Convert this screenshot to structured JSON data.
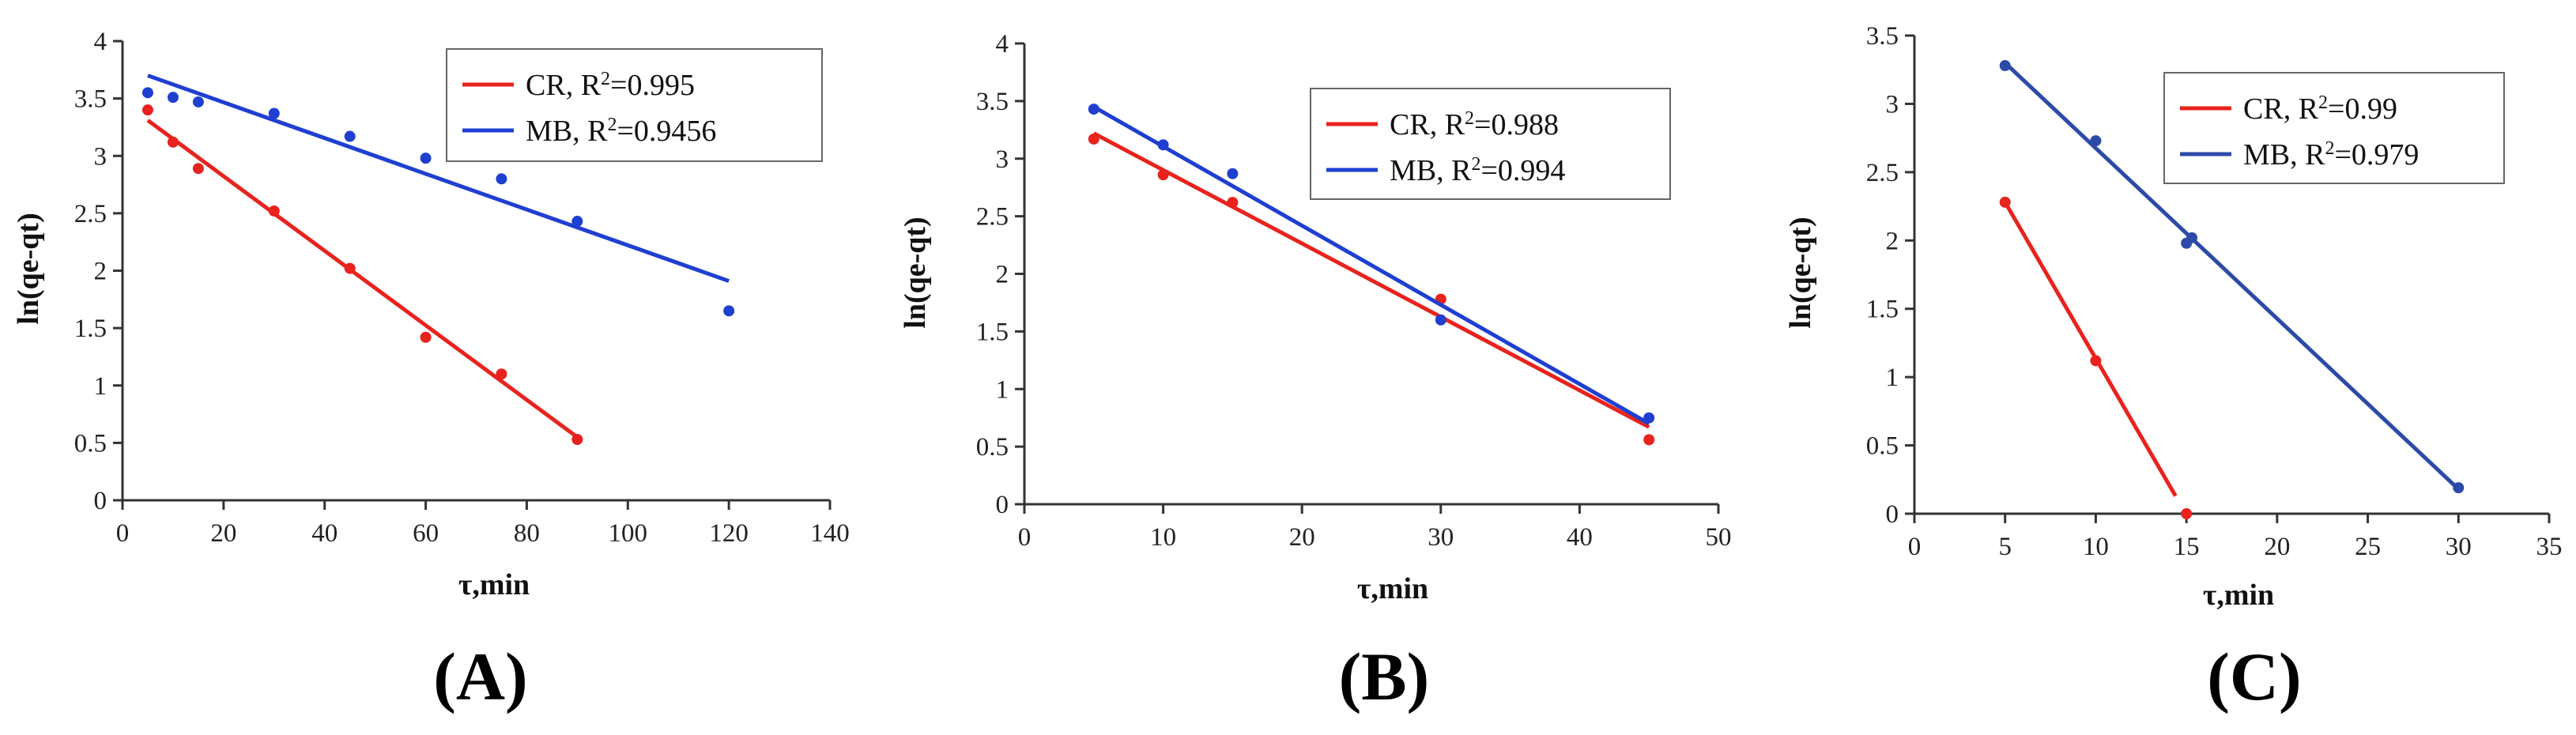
{
  "chart_data": [
    {
      "type": "scatter",
      "panel_label": "(A)",
      "xlabel": "τ,min",
      "ylabel": "ln(qe-qt)",
      "xlim": [
        0,
        140
      ],
      "ylim": [
        0,
        4
      ],
      "xticks": [
        0,
        20,
        40,
        60,
        80,
        100,
        120,
        140
      ],
      "yticks": [
        0,
        0.5,
        1,
        1.5,
        2,
        2.5,
        3,
        3.5,
        4
      ],
      "legend_position": "top-right",
      "grid": false,
      "series": [
        {
          "name": "CR, R",
          "r2": "0.995",
          "color": "#e8231d",
          "points": [
            [
              5,
              3.4
            ],
            [
              10,
              3.12
            ],
            [
              15,
              2.89
            ],
            [
              30,
              2.52
            ],
            [
              45,
              2.02
            ],
            [
              60,
              1.42
            ],
            [
              75,
              1.1
            ],
            [
              90,
              0.53
            ]
          ],
          "fit": [
            [
              5,
              3.31
            ],
            [
              90,
              0.55
            ]
          ]
        },
        {
          "name": "MB, R",
          "r2": "0.9456",
          "color": "#1f3fd1",
          "points": [
            [
              5,
              3.55
            ],
            [
              10,
              3.51
            ],
            [
              15,
              3.47
            ],
            [
              30,
              3.37
            ],
            [
              45,
              3.17
            ],
            [
              60,
              2.98
            ],
            [
              75,
              2.8
            ],
            [
              90,
              2.43
            ],
            [
              120,
              1.65
            ]
          ],
          "fit": [
            [
              5,
              3.7
            ],
            [
              120,
              1.91
            ]
          ]
        }
      ]
    },
    {
      "type": "scatter",
      "panel_label": "(B)",
      "xlabel": "τ,min",
      "ylabel": "ln(qe-qt)",
      "xlim": [
        0,
        50
      ],
      "ylim": [
        0,
        4
      ],
      "xticks": [
        0,
        10,
        20,
        30,
        40,
        50
      ],
      "yticks": [
        0,
        0.5,
        1,
        1.5,
        2,
        2.5,
        3,
        3.5,
        4
      ],
      "legend_position": "top-right",
      "grid": false,
      "series": [
        {
          "name": "CR, R",
          "r2": "0.988",
          "color": "#e8231d",
          "points": [
            [
              5,
              3.17
            ],
            [
              10,
              2.86
            ],
            [
              15,
              2.62
            ],
            [
              30,
              1.78
            ],
            [
              45,
              0.56
            ]
          ],
          "fit": [
            [
              5,
              3.22
            ],
            [
              45,
              0.67
            ]
          ]
        },
        {
          "name": "MB, R",
          "r2": "0.994",
          "color": "#1f3fd1",
          "points": [
            [
              5,
              3.43
            ],
            [
              10,
              3.12
            ],
            [
              15,
              2.87
            ],
            [
              30,
              1.6
            ],
            [
              45,
              0.75
            ]
          ],
          "fit": [
            [
              5,
              3.45
            ],
            [
              45,
              0.7
            ]
          ]
        }
      ]
    },
    {
      "type": "scatter",
      "panel_label": "(C)",
      "xlabel": "τ,min",
      "ylabel": "ln(qe-qt)",
      "xlim": [
        0,
        35
      ],
      "ylim": [
        0,
        3.5
      ],
      "xticks": [
        0,
        5,
        10,
        15,
        20,
        25,
        30,
        35
      ],
      "yticks": [
        0,
        0.5,
        1,
        1.5,
        2,
        2.5,
        3,
        3.5
      ],
      "legend_position": "top-right",
      "grid": false,
      "series": [
        {
          "name": "CR, R",
          "r2": "0.99",
          "color": "#e8231d",
          "points": [
            [
              5,
              2.28
            ],
            [
              10,
              1.12
            ],
            [
              15,
              0.0
            ]
          ],
          "fit": [
            [
              5,
              2.28
            ],
            [
              14.4,
              0.13
            ]
          ]
        },
        {
          "name": "MB, R",
          "r2": "0.979",
          "color": "#2d4aa8",
          "points": [
            [
              5,
              3.28
            ],
            [
              10,
              2.73
            ],
            [
              15,
              1.98
            ],
            [
              15.3,
              2.02
            ],
            [
              30,
              0.19
            ]
          ],
          "fit": [
            [
              5,
              3.3
            ],
            [
              30,
              0.18
            ]
          ]
        }
      ]
    }
  ]
}
